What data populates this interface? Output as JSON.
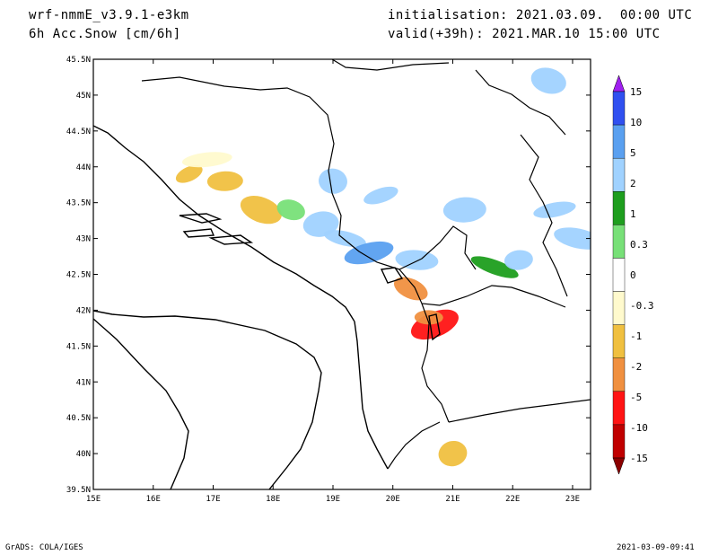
{
  "header": {
    "model": "wrf-nmmE_v3.9.1-e3km",
    "field": "6h Acc.Snow [cm/6h]",
    "initialisation": "initialisation: 2021.03.09.  00:00 UTC",
    "valid": "valid(+39h): 2021.MAR.10 15:00 UTC"
  },
  "footer": {
    "credit": "GrADS: COLA/IGES",
    "timestamp": "2021-03-09-09:41"
  },
  "map": {
    "lon_ticks": [
      "15E",
      "16E",
      "17E",
      "18E",
      "19E",
      "20E",
      "21E",
      "22E",
      "23E"
    ],
    "lat_ticks": [
      "39.5N",
      "40N",
      "40.5N",
      "41N",
      "41.5N",
      "42N",
      "42.5N",
      "43N",
      "43.5N",
      "44N",
      "44.5N",
      "45N",
      "45.5N"
    ],
    "lon_range": [
      15,
      23.3
    ],
    "lat_range": [
      39.5,
      45.5
    ]
  },
  "legend": {
    "labels": [
      "15",
      "10",
      "5",
      "2",
      "1",
      "0.3",
      "0",
      "-0.3",
      "-1",
      "-2",
      "-5",
      "-10",
      "-15"
    ],
    "colors": [
      "#a020f0",
      "#3050f0",
      "#5aa0f0",
      "#a0d2ff",
      "#1e9e1e",
      "#78e078",
      "#ffffff",
      "#fffacd",
      "#f0c040",
      "#f09040",
      "#ff1414",
      "#c00000",
      "#8b0000"
    ]
  },
  "snow_areas": [
    {
      "lon": 16.6,
      "lat": 43.9,
      "cls": "-1"
    },
    {
      "lon": 17.2,
      "lat": 43.8,
      "cls": "-1"
    },
    {
      "lon": 17.8,
      "lat": 43.4,
      "cls": "-1"
    },
    {
      "lon": 16.9,
      "lat": 44.1,
      "cls": "-0.3"
    },
    {
      "lon": 18.3,
      "lat": 43.4,
      "cls": "0.3"
    },
    {
      "lon": 18.8,
      "lat": 43.2,
      "cls": "2"
    },
    {
      "lon": 19.2,
      "lat": 43.0,
      "cls": "2"
    },
    {
      "lon": 19.6,
      "lat": 42.8,
      "cls": "5"
    },
    {
      "lon": 19.0,
      "lat": 43.8,
      "cls": "2"
    },
    {
      "lon": 19.8,
      "lat": 43.6,
      "cls": "2"
    },
    {
      "lon": 20.4,
      "lat": 42.7,
      "cls": "2"
    },
    {
      "lon": 20.7,
      "lat": 41.8,
      "cls": "-5"
    },
    {
      "lon": 20.6,
      "lat": 41.9,
      "cls": "-2"
    },
    {
      "lon": 20.3,
      "lat": 42.3,
      "cls": "-2"
    },
    {
      "lon": 21.2,
      "lat": 43.4,
      "cls": "2"
    },
    {
      "lon": 21.7,
      "lat": 42.6,
      "cls": "1"
    },
    {
      "lon": 22.1,
      "lat": 42.7,
      "cls": "2"
    },
    {
      "lon": 22.6,
      "lat": 45.2,
      "cls": "2"
    },
    {
      "lon": 22.7,
      "lat": 43.4,
      "cls": "2"
    },
    {
      "lon": 23.1,
      "lat": 43.0,
      "cls": "2"
    },
    {
      "lon": 21.0,
      "lat": 40.0,
      "cls": "-1"
    }
  ]
}
